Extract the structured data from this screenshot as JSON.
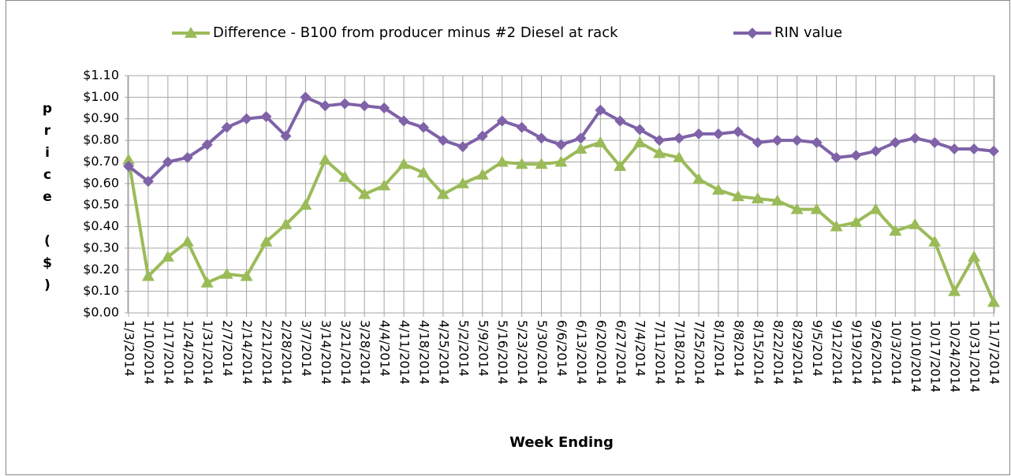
{
  "chart_data": {
    "type": "line",
    "x_label": "Week Ending",
    "y_label": "price ($)",
    "categories": [
      "1/3/2014",
      "1/10/2014",
      "1/17/2014",
      "1/24/2014",
      "1/31/2014",
      "2/7/2014",
      "2/14/2014",
      "2/21/2014",
      "2/28/2014",
      "3/7/2014",
      "3/14/2014",
      "3/21/2014",
      "3/28/2014",
      "4/4/2014",
      "4/11/2014",
      "4/18/2014",
      "4/25/2014",
      "5/2/2014",
      "5/9/2014",
      "5/16/2014",
      "5/23/2014",
      "5/30/2014",
      "6/6/2014",
      "6/13/2014",
      "6/20/2014",
      "6/27/2014",
      "7/4/2014",
      "7/11/2014",
      "7/18/2014",
      "7/25/2014",
      "8/1/2014",
      "8/8/2014",
      "8/15/2014",
      "8/22/2014",
      "8/29/2014",
      "9/5/2014",
      "9/12/2014",
      "9/19/2014",
      "9/26/2014",
      "10/3/2014",
      "10/10/2014",
      "10/17/2014",
      "10/24/2014",
      "10/31/2014",
      "11/7/2014"
    ],
    "series": [
      {
        "name": "Difference - B100 from producer minus #2 Diesel at rack",
        "color": "#9bbb59",
        "marker": "triangle",
        "values": [
          0.71,
          0.17,
          0.26,
          0.33,
          0.14,
          0.18,
          0.17,
          0.33,
          0.41,
          0.5,
          0.71,
          0.63,
          0.55,
          0.59,
          0.69,
          0.65,
          0.55,
          0.6,
          0.64,
          0.7,
          0.69,
          0.69,
          0.7,
          0.76,
          0.79,
          0.68,
          0.79,
          0.74,
          0.72,
          0.62,
          0.57,
          0.54,
          0.53,
          0.52,
          0.48,
          0.48,
          0.4,
          0.42,
          0.48,
          0.38,
          0.41,
          0.33,
          0.1,
          0.26,
          0.05
        ]
      },
      {
        "name": "RIN value",
        "color": "#7f62a8",
        "marker": "diamond",
        "values": [
          0.68,
          0.61,
          0.7,
          0.72,
          0.78,
          0.86,
          0.9,
          0.91,
          0.82,
          1.0,
          0.96,
          0.97,
          0.96,
          0.95,
          0.89,
          0.86,
          0.8,
          0.77,
          0.82,
          0.89,
          0.86,
          0.81,
          0.78,
          0.81,
          0.94,
          0.89,
          0.85,
          0.8,
          0.81,
          0.83,
          0.83,
          0.84,
          0.79,
          0.8,
          0.8,
          0.79,
          0.72,
          0.73,
          0.75,
          0.79,
          0.81,
          0.79,
          0.76,
          0.76,
          0.75
        ]
      }
    ],
    "ylim": [
      0,
      1.1
    ],
    "yticks": [
      {
        "value": 0,
        "label": "$0.00"
      },
      {
        "value": 0.1,
        "label": "$0.10"
      },
      {
        "value": 0.2,
        "label": "$0.20"
      },
      {
        "value": 0.3,
        "label": "$0.30"
      },
      {
        "value": 0.4,
        "label": "$0.40"
      },
      {
        "value": 0.5,
        "label": "$0.50"
      },
      {
        "value": 0.6,
        "label": "$0.60"
      },
      {
        "value": 0.7,
        "label": "$0.70"
      },
      {
        "value": 0.8,
        "label": "$0.80"
      },
      {
        "value": 0.9,
        "label": "$0.90"
      },
      {
        "value": 1.0,
        "label": "$1.00"
      },
      {
        "value": 1.1,
        "label": "$1.10"
      }
    ],
    "grid": true,
    "legend": "top"
  }
}
